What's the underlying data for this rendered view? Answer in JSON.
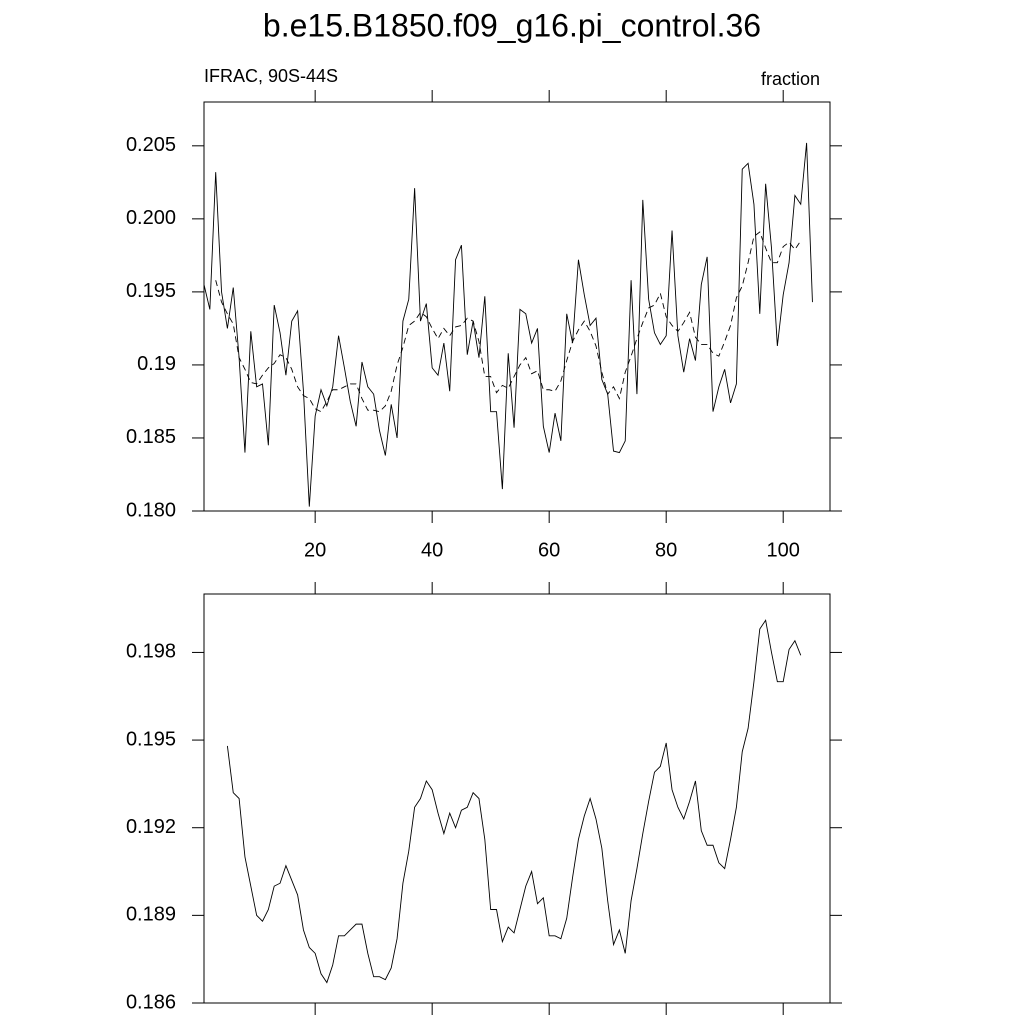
{
  "chart_data": [
    {
      "type": "line",
      "title": "b.e15.B1850.f09_g16.pi_control.36",
      "subtitle_left": "IFRAC, 90S-44S",
      "subtitle_right": "fraction",
      "xlim": [
        1,
        108
      ],
      "xticks": [
        20,
        40,
        60,
        80,
        100
      ],
      "xtick_labels": true,
      "ylim": [
        0.18,
        0.208
      ],
      "yticks": [
        {
          "value": 0.18,
          "label": "0.180"
        },
        0.185,
        0.19,
        0.195,
        {
          "value": 0.2,
          "label": "0.200"
        },
        0.205
      ],
      "series": [
        {
          "color": "#000000",
          "dash": false,
          "x": [
            1,
            2,
            3,
            4,
            5,
            6,
            7,
            8,
            9,
            10,
            11,
            12,
            13,
            14,
            15,
            16,
            17,
            18,
            19,
            20,
            21,
            22,
            23,
            24,
            25,
            26,
            27,
            28,
            29,
            30,
            31,
            32,
            33,
            34,
            35,
            36,
            37,
            38,
            39,
            40,
            41,
            42,
            43,
            44,
            45,
            46,
            47,
            48,
            49,
            50,
            51,
            52,
            53,
            54,
            55,
            56,
            57,
            58,
            59,
            60,
            61,
            62,
            63,
            64,
            65,
            66,
            67,
            68,
            69,
            70,
            71,
            72,
            73,
            74,
            75,
            76,
            77,
            78,
            79,
            80,
            81,
            82,
            83,
            84,
            85,
            86,
            87,
            88,
            89,
            90,
            91,
            92,
            93,
            94,
            95,
            96,
            97,
            98,
            99,
            100,
            101,
            102,
            103,
            104,
            105
          ],
          "values": [
            0.1955,
            0.1938,
            0.2032,
            0.195,
            0.1925,
            0.1953,
            0.1905,
            0.184,
            0.1923,
            0.1885,
            0.1887,
            0.1845,
            0.1941,
            0.1922,
            0.1893,
            0.193,
            0.1937,
            0.1882,
            0.1803,
            0.1865,
            0.1883,
            0.1872,
            0.1885,
            0.192,
            0.1898,
            0.1875,
            0.1858,
            0.1902,
            0.1885,
            0.188,
            0.1855,
            0.1838,
            0.1873,
            0.185,
            0.193,
            0.1945,
            0.2021,
            0.193,
            0.1942,
            0.1898,
            0.1893,
            0.1915,
            0.1882,
            0.1972,
            0.1982,
            0.1907,
            0.193,
            0.1905,
            0.1947,
            0.1868,
            0.1868,
            0.1815,
            0.1908,
            0.1857,
            0.1938,
            0.1935,
            0.1915,
            0.1925,
            0.1858,
            0.184,
            0.1867,
            0.1848,
            0.1935,
            0.1915,
            0.1972,
            0.1948,
            0.1927,
            0.1932,
            0.189,
            0.188,
            0.1841,
            0.184,
            0.1848,
            0.1958,
            0.188,
            0.2013,
            0.1945,
            0.1922,
            0.1914,
            0.192,
            0.1992,
            0.192,
            0.1895,
            0.1918,
            0.1903,
            0.1955,
            0.1974,
            0.1868,
            0.1885,
            0.1897,
            0.1874,
            0.1887,
            0.2034,
            0.2038,
            0.201,
            0.1935,
            0.2024,
            0.198,
            0.1913,
            0.1948,
            0.197,
            0.2016,
            0.201,
            0.2052,
            0.1943
          ]
        },
        {
          "color": "#000000",
          "dash": true,
          "x": [
            3,
            4,
            5,
            6,
            7,
            8,
            9,
            10,
            11,
            12,
            13,
            14,
            15,
            16,
            17,
            18,
            19,
            20,
            21,
            22,
            23,
            24,
            25,
            26,
            27,
            28,
            29,
            30,
            31,
            32,
            33,
            34,
            35,
            36,
            37,
            38,
            39,
            40,
            41,
            42,
            43,
            44,
            45,
            46,
            47,
            48,
            49,
            50,
            51,
            52,
            53,
            54,
            55,
            56,
            57,
            58,
            59,
            60,
            61,
            62,
            63,
            64,
            65,
            66,
            67,
            68,
            69,
            70,
            71,
            72,
            73,
            74,
            75,
            76,
            77,
            78,
            79,
            80,
            81,
            82,
            83,
            84,
            85,
            86,
            87,
            88,
            89,
            90,
            91,
            92,
            93,
            94,
            95,
            96,
            97,
            98,
            99,
            100,
            101,
            102,
            103
          ],
          "values": [
            0.1958,
            0.1943,
            0.1935,
            0.1928,
            0.1905,
            0.1897,
            0.1888,
            0.1887,
            0.1893,
            0.1898,
            0.1901,
            0.1907,
            0.1905,
            0.1897,
            0.1885,
            0.1879,
            0.1877,
            0.187,
            0.1868,
            0.1875,
            0.1883,
            0.1883,
            0.1885,
            0.1887,
            0.1887,
            0.1877,
            0.1869,
            0.1869,
            0.1868,
            0.1872,
            0.1882,
            0.19,
            0.1912,
            0.1927,
            0.193,
            0.1936,
            0.1933,
            0.1925,
            0.1918,
            0.1925,
            0.192,
            0.1926,
            0.1927,
            0.1932,
            0.193,
            0.1916,
            0.1892,
            0.1892,
            0.1881,
            0.1886,
            0.1884,
            0.1892,
            0.19,
            0.1905,
            0.1894,
            0.1896,
            0.1883,
            0.1883,
            0.1882,
            0.1889,
            0.1903,
            0.1916,
            0.1924,
            0.193,
            0.1923,
            0.1913,
            0.1895,
            0.188,
            0.1885,
            0.1877,
            0.1895,
            0.1906,
            0.1918,
            0.1929,
            0.1939,
            0.1941,
            0.1949,
            0.1933,
            0.1927,
            0.1923,
            0.1929,
            0.1936,
            0.1919,
            0.1914,
            0.1914,
            0.1908,
            0.1906,
            0.1916,
            0.1927,
            0.1946,
            0.1954,
            0.197,
            0.1988,
            0.1991,
            0.198,
            0.197,
            0.197,
            0.1981,
            0.1984,
            0.1979,
            0.1985
          ]
        }
      ]
    },
    {
      "type": "line",
      "xlim": [
        1,
        108
      ],
      "xticks": [
        20,
        40,
        60,
        80,
        100
      ],
      "xtick_labels": false,
      "ylim": [
        0.186,
        0.2
      ],
      "yticks": [
        0.186,
        0.189,
        0.192,
        0.195,
        0.198
      ],
      "series": [
        {
          "color": "#000000",
          "dash": false,
          "x": [
            5,
            6,
            7,
            8,
            9,
            10,
            11,
            12,
            13,
            14,
            15,
            16,
            17,
            18,
            19,
            20,
            21,
            22,
            23,
            24,
            25,
            26,
            27,
            28,
            29,
            30,
            31,
            32,
            33,
            34,
            35,
            36,
            37,
            38,
            39,
            40,
            41,
            42,
            43,
            44,
            45,
            46,
            47,
            48,
            49,
            50,
            51,
            52,
            53,
            54,
            55,
            56,
            57,
            58,
            59,
            60,
            61,
            62,
            63,
            64,
            65,
            66,
            67,
            68,
            69,
            70,
            71,
            72,
            73,
            74,
            75,
            76,
            77,
            78,
            79,
            80,
            81,
            82,
            83,
            84,
            85,
            86,
            87,
            88,
            89,
            90,
            91,
            92,
            93,
            94,
            95,
            96,
            97,
            98,
            99,
            100,
            101,
            102,
            103
          ],
          "values": [
            0.1948,
            0.1932,
            0.193,
            0.191,
            0.19,
            0.189,
            0.1888,
            0.1892,
            0.19,
            0.1901,
            0.1907,
            0.1902,
            0.1897,
            0.1885,
            0.1879,
            0.1877,
            0.187,
            0.1867,
            0.1873,
            0.1883,
            0.1883,
            0.1885,
            0.1887,
            0.1887,
            0.1877,
            0.1869,
            0.1869,
            0.1868,
            0.1872,
            0.1882,
            0.1901,
            0.1912,
            0.1927,
            0.193,
            0.1936,
            0.1933,
            0.1925,
            0.1918,
            0.1925,
            0.192,
            0.1926,
            0.1927,
            0.1932,
            0.193,
            0.1916,
            0.1892,
            0.1892,
            0.1881,
            0.1886,
            0.1884,
            0.1892,
            0.19,
            0.1905,
            0.1894,
            0.1896,
            0.1883,
            0.1883,
            0.1882,
            0.1889,
            0.1903,
            0.1916,
            0.1924,
            0.193,
            0.1923,
            0.1913,
            0.1895,
            0.188,
            0.1885,
            0.1877,
            0.1895,
            0.1906,
            0.1918,
            0.1929,
            0.1939,
            0.1941,
            0.1949,
            0.1933,
            0.1927,
            0.1923,
            0.1929,
            0.1936,
            0.1919,
            0.1914,
            0.1914,
            0.1908,
            0.1906,
            0.1916,
            0.1927,
            0.1946,
            0.1954,
            0.197,
            0.1988,
            0.1991,
            0.198,
            0.197,
            0.197,
            0.1981,
            0.1984,
            0.1979
          ]
        }
      ]
    }
  ]
}
